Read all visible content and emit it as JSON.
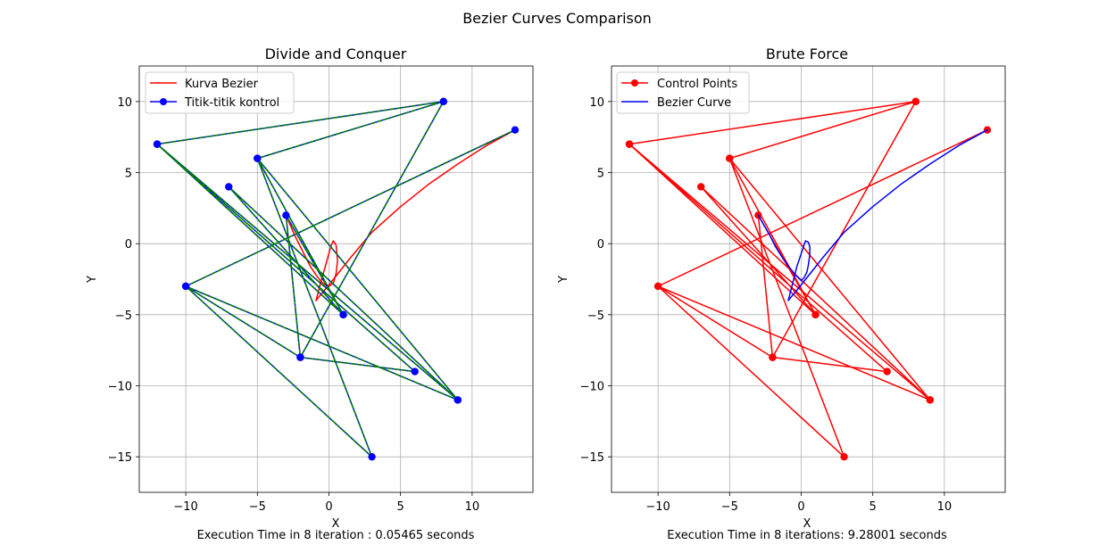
{
  "suptitle": "Bezier Curves Comparison",
  "colors": {
    "red": "#ff0000",
    "blue": "#0000ff",
    "green": "#008000",
    "grid": "#b0b0b0",
    "frame": "#000000"
  },
  "chart_data": [
    {
      "type": "line",
      "title": "Divide and Conquer",
      "xlabel": "X",
      "ylabel": "Y",
      "xlim": [
        -13.25,
        14.25
      ],
      "ylim": [
        -17.5,
        12.5
      ],
      "xticks": [
        -10,
        -5,
        0,
        5,
        10
      ],
      "yticks": [
        -15,
        -10,
        -5,
        0,
        5,
        10
      ],
      "grid": true,
      "legend_position": "top-left",
      "footer": "Execution Time in 8 iteration : 0.05465 seconds",
      "control_points": [
        [
          8,
          10
        ],
        [
          -12,
          7
        ],
        [
          6,
          -9
        ],
        [
          -2,
          -8
        ],
        [
          8,
          10
        ],
        [
          -5,
          6
        ],
        [
          3,
          -15
        ],
        [
          -10,
          -3
        ],
        [
          9,
          -11
        ],
        [
          -5,
          6
        ],
        [
          1,
          -5
        ],
        [
          -7,
          4
        ],
        [
          9,
          -11
        ],
        [
          -12,
          7
        ],
        [
          1,
          -5
        ],
        [
          -3,
          2
        ],
        [
          -2,
          -8
        ],
        [
          -10,
          -3
        ],
        [
          13,
          8
        ]
      ],
      "series": [
        {
          "name": "Kurva Bezier",
          "color": "#ff0000",
          "marker": false,
          "x": [
            -0.9,
            -0.6,
            -0.2,
            0.1,
            0.3,
            0.5,
            0.6,
            0.5,
            0.3,
            0.0,
            -0.3,
            -0.6,
            -0.9,
            -1.3,
            -1.6,
            -2.0,
            -2.4,
            -2.7,
            -3.0
          ],
          "y": [
            -4.0,
            -2.8,
            -1.4,
            -0.3,
            0.2,
            -0.1,
            -1.2,
            -2.1,
            -2.8,
            -3.0,
            -2.9,
            -2.6,
            -2.2,
            -1.6,
            -1.0,
            -0.2,
            0.6,
            1.3,
            2.0
          ],
          "x2": [
            -0.9,
            0.0,
            1.5,
            3.0,
            5.0,
            7.0,
            9.0,
            11.0,
            13.0
          ],
          "y2": [
            -4.0,
            -2.9,
            -1.0,
            0.8,
            2.6,
            4.2,
            5.6,
            6.9,
            8.0
          ]
        },
        {
          "name": "Titik-titik kontrol",
          "color": "#0000ff",
          "marker": true
        }
      ]
    },
    {
      "type": "line",
      "title": "Brute Force",
      "xlabel": "X",
      "ylabel": "Y",
      "xlim": [
        -13.25,
        14.25
      ],
      "ylim": [
        -17.5,
        12.5
      ],
      "xticks": [
        -10,
        -5,
        0,
        5,
        10
      ],
      "yticks": [
        -15,
        -10,
        -5,
        0,
        5,
        10
      ],
      "grid": true,
      "legend_position": "top-left",
      "footer": "Execution Time in 8 iterations: 9.28001 seconds",
      "control_points": [
        [
          8,
          10
        ],
        [
          -12,
          7
        ],
        [
          6,
          -9
        ],
        [
          -2,
          -8
        ],
        [
          8,
          10
        ],
        [
          -5,
          6
        ],
        [
          3,
          -15
        ],
        [
          -10,
          -3
        ],
        [
          9,
          -11
        ],
        [
          -5,
          6
        ],
        [
          1,
          -5
        ],
        [
          -7,
          4
        ],
        [
          9,
          -11
        ],
        [
          -12,
          7
        ],
        [
          1,
          -5
        ],
        [
          -3,
          2
        ],
        [
          -2,
          -8
        ],
        [
          -10,
          -3
        ],
        [
          13,
          8
        ]
      ],
      "series": [
        {
          "name": "Control Points",
          "color": "#ff0000",
          "marker": true
        },
        {
          "name": "Bezier Curve",
          "color": "#0000ff",
          "marker": false,
          "x": [
            -3.0,
            -2.6,
            -2.2,
            -1.8,
            -1.3,
            -0.8,
            -0.4,
            -0.1,
            0.0,
            0.1,
            0.2,
            0.4,
            0.5,
            0.6,
            0.6,
            0.5,
            0.3,
            0.1,
            -0.3,
            -0.6,
            -0.9
          ],
          "y": [
            2.0,
            1.3,
            0.6,
            -0.2,
            -1.0,
            -1.7,
            -2.2,
            -2.5,
            -2.6,
            -2.5,
            -2.4,
            -2.0,
            -1.5,
            -0.8,
            -0.2,
            0.1,
            0.2,
            -0.4,
            -1.6,
            -2.8,
            -4.0
          ],
          "x2": [
            -0.9,
            0.0,
            1.5,
            3.0,
            5.0,
            7.0,
            9.0,
            11.0,
            13.0
          ],
          "y2": [
            -4.0,
            -2.9,
            -1.0,
            0.8,
            2.6,
            4.2,
            5.6,
            6.9,
            8.0
          ]
        }
      ]
    }
  ]
}
